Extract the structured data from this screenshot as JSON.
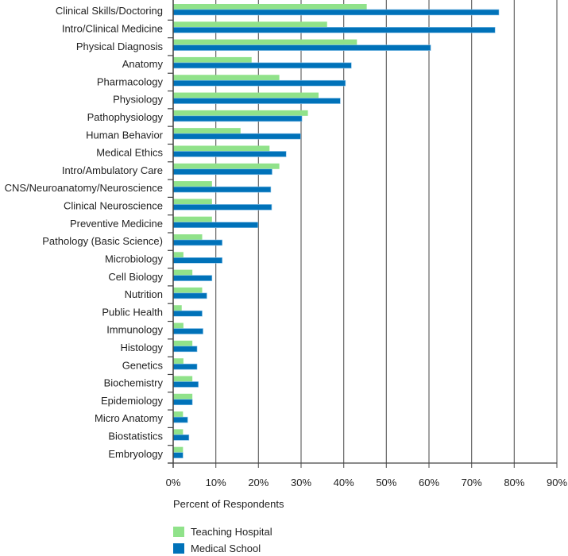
{
  "chart_data": {
    "type": "bar",
    "orientation": "horizontal",
    "title": "",
    "xlabel": "Percent of Respondents",
    "ylabel": "",
    "xlim": [
      0,
      90
    ],
    "xticks": [
      "0%",
      "10%",
      "20%",
      "30%",
      "40%",
      "50%",
      "60%",
      "70%",
      "80%",
      "90%"
    ],
    "grid": true,
    "legend_placement": "bottom-left",
    "categories": [
      "Clinical Skills/Doctoring",
      "Intro/Clinical Medicine",
      "Physical Diagnosis",
      "Anatomy",
      "Pharmacology",
      "Physiology",
      "Pathophysiology",
      "Human Behavior",
      "Medical Ethics",
      "Intro/Ambulatory Care",
      "CNS/Neuroanatomy/Neuroscience",
      "Clinical Neuroscience",
      "Preventive Medicine",
      "Pathology (Basic Science)",
      "Microbiology",
      "Cell Biology",
      "Nutrition",
      "Public Health",
      "Immunology",
      "Histology",
      "Genetics",
      "Biochemistry",
      "Epidemiology",
      "Micro Anatomy",
      "Biostatistics",
      "Embryology"
    ],
    "series": [
      {
        "name": "Teaching Hospital",
        "color": "#90e28a",
        "values": [
          45.4,
          36.1,
          43.1,
          18.4,
          24.9,
          34.1,
          31.6,
          15.8,
          22.6,
          24.9,
          9.1,
          9.1,
          9.1,
          6.8,
          2.4,
          4.5,
          6.8,
          2.0,
          2.4,
          4.5,
          2.4,
          4.5,
          4.5,
          2.3,
          2.3,
          2.3
        ]
      },
      {
        "name": "Medical School",
        "color": "#0072b9",
        "values": [
          76.4,
          75.5,
          60.4,
          41.8,
          40.4,
          39.2,
          30.2,
          29.9,
          26.5,
          23.2,
          22.9,
          23.1,
          19.9,
          11.5,
          11.5,
          9.1,
          7.9,
          6.8,
          7.0,
          5.6,
          5.6,
          5.9,
          4.5,
          3.4,
          3.7,
          2.3
        ]
      }
    ]
  }
}
